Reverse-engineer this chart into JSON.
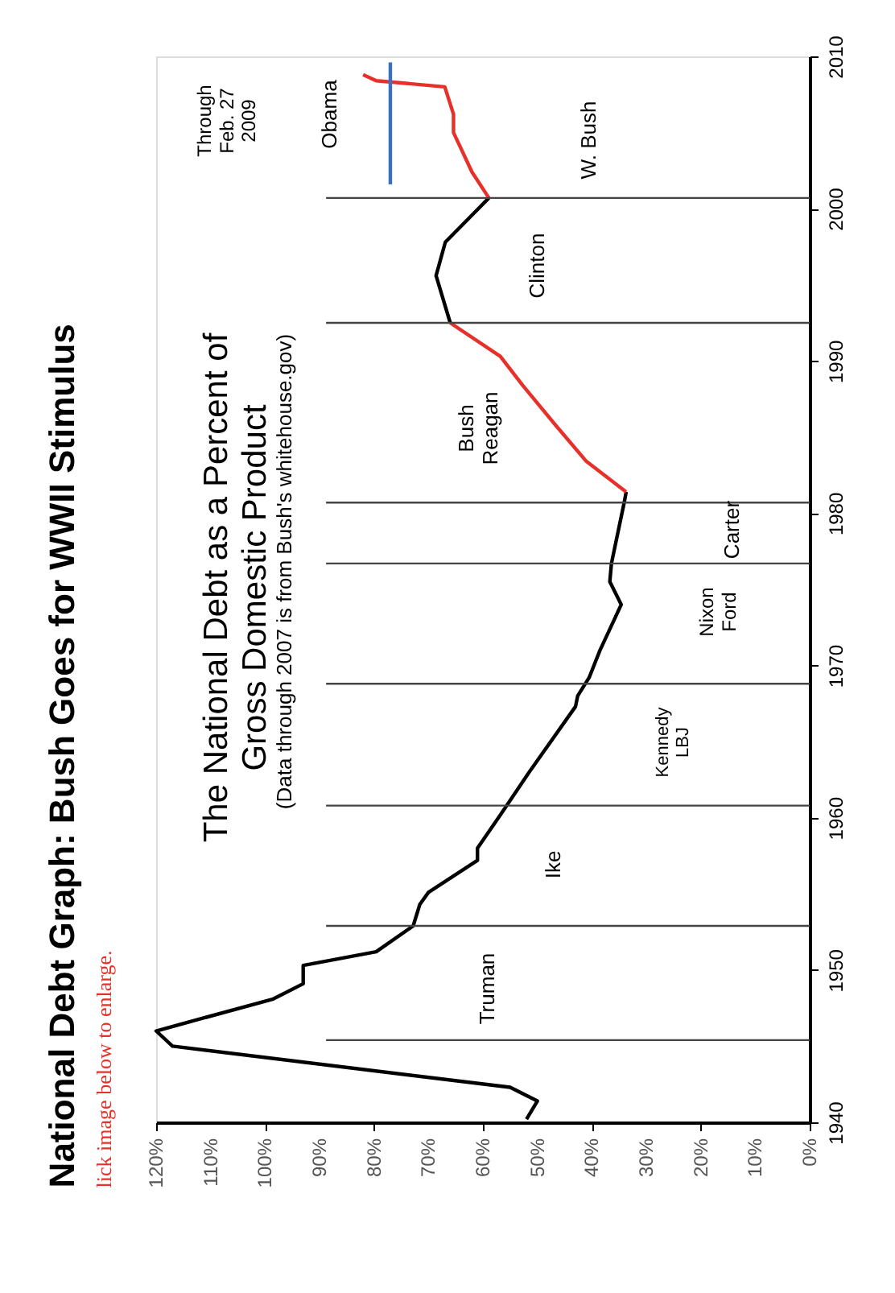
{
  "chart_data": {
    "type": "line",
    "title": "National Debt Graph: Bush Goes for WWII Stimulus",
    "subtitle": "lick image below to enlarge.",
    "ylim": [
      1940,
      2010
    ],
    "yticks": [
      1940,
      1950,
      1960,
      1970,
      1980,
      1990,
      2000,
      2010
    ],
    "xlim": [
      120,
      0
    ],
    "xticks": [
      {
        "value": 0,
        "label": "0%"
      },
      {
        "value": 10,
        "label": "10%"
      },
      {
        "value": 20,
        "label": "20%"
      },
      {
        "value": 30,
        "label": "30%"
      },
      {
        "value": 40,
        "label": "40%"
      },
      {
        "value": 50,
        "label": "50%"
      },
      {
        "value": 60,
        "label": "60%"
      },
      {
        "value": 70,
        "label": "70%"
      },
      {
        "value": 80,
        "label": "80%"
      },
      {
        "value": 90,
        "label": "90%"
      },
      {
        "value": 100,
        "label": "100%"
      },
      {
        "value": 110,
        "label": "110%"
      },
      {
        "value": 120,
        "label": "120%"
      }
    ],
    "series": [
      {
        "color": "#000000",
        "values": [
          1940.2,
          1941.4,
          1942.3,
          1945,
          1946,
          1948.1,
          1949.1,
          1950.3,
          1951.2,
          1952.9,
          1954.3,
          1955.1,
          1957.2,
          1958,
          1960.6,
          1963,
          1967.3,
          1968,
          1969.2,
          1971,
          1974,
          1975.5,
          1976.7,
          1980.8,
          1981.4
        ],
        "x": [
          52,
          50,
          55,
          117,
          120,
          98.5,
          93,
          93,
          79.6,
          72.8,
          71.6,
          70,
          61,
          61,
          56,
          51.5,
          43,
          42.6,
          40.5,
          38.5,
          34.6,
          36.7,
          36.4,
          34,
          33.7
        ]
      },
      {
        "color": "#e8302a",
        "values": [
          1981.4,
          1983.4,
          1985.8,
          1988.4,
          1990.3,
          1992.5
        ],
        "x": [
          33.7,
          41,
          46.7,
          52.7,
          56.8,
          66
        ]
      },
      {
        "color": "#000000",
        "values": [
          1992.5,
          1995.6,
          1997.8,
          2000.7
        ],
        "x": [
          66,
          68.6,
          66.9,
          58.9
        ]
      },
      {
        "color": "#e8302a",
        "values": [
          2000.7,
          2002.4,
          2005,
          2006.2,
          2008,
          2008.4,
          2008.8
        ],
        "x": [
          58.9,
          62,
          65.4,
          65.4,
          67,
          79.6,
          82
        ]
      },
      {
        "color": "#3a6fc4",
        "values": [
          2001.6,
          2009.6
        ],
        "x": [
          77,
          77
        ]
      }
    ],
    "ref_lines": [
      {
        "axis": "y",
        "value": 1945.4,
        "color": "#444444"
      },
      {
        "axis": "y",
        "value": 1952.9,
        "color": "#444444"
      },
      {
        "axis": "y",
        "value": 1960.8,
        "color": "#444444"
      },
      {
        "axis": "y",
        "value": 1968.8,
        "color": "#444444"
      },
      {
        "axis": "y",
        "value": 1976.7,
        "color": "#444444"
      },
      {
        "axis": "y",
        "value": 1980.7,
        "color": "#444444"
      },
      {
        "axis": "y",
        "value": 1992.5,
        "color": "#444444"
      },
      {
        "axis": "y",
        "value": 2000.7,
        "color": "#444444"
      }
    ],
    "annotations": [
      "The National Debt as a Percent of\nGross Domestic Product",
      "(Data through 2007 is from Bush's whitehouse.gov)",
      "Through\nFeb. 27\n2009",
      "Truman",
      "Ike",
      "Kennedy\nLBJ",
      "Nixon\nFord",
      "Carter",
      "Bush\nReagan",
      "Clinton",
      "W. Bush",
      "Obama"
    ],
    "grid": false,
    "marker": "none"
  }
}
